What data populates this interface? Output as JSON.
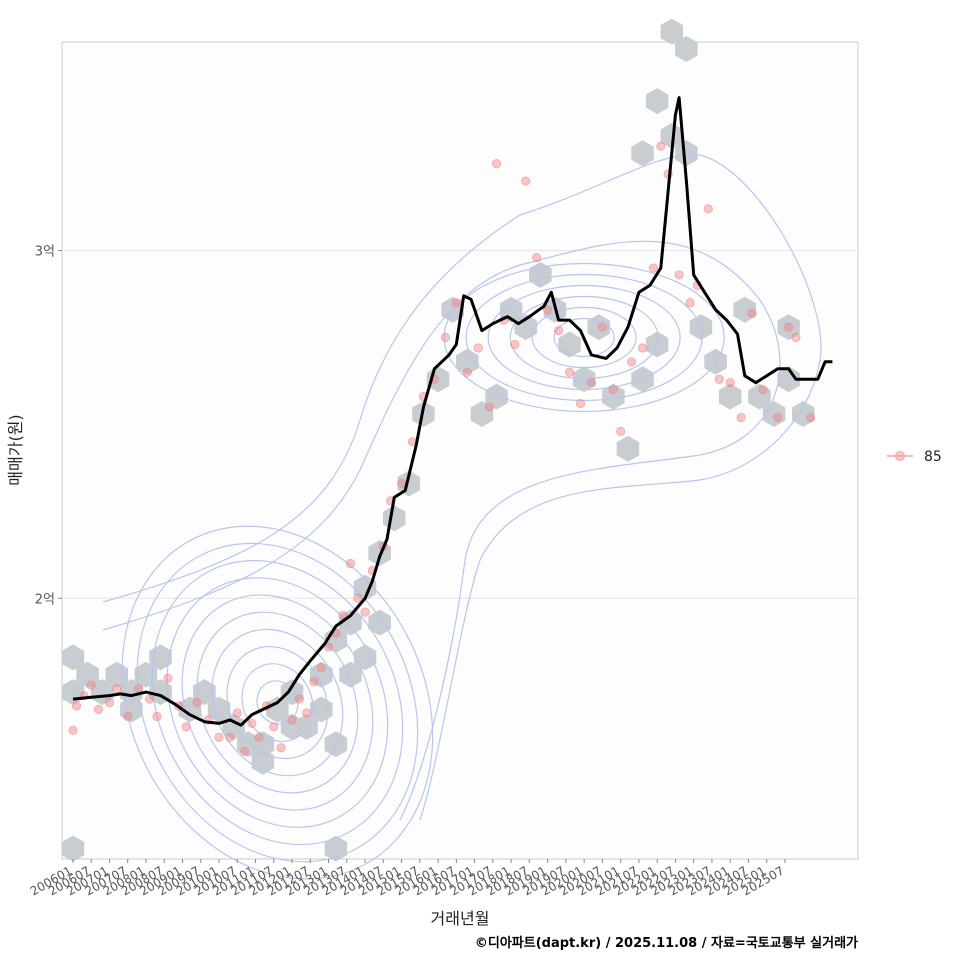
{
  "chart_data": {
    "type": "scatter",
    "description_type": "scatter with hexbin density, 2D density contours and moving-average line",
    "xlabel": "거래년월",
    "ylabel": "매매가(원)",
    "y_unit": "억원",
    "ylim": [
      1.25,
      3.6
    ],
    "y_ticks": [
      {
        "value": 2,
        "label": "2억"
      },
      {
        "value": 3,
        "label": "3억"
      }
    ],
    "x_range": [
      2005.7,
      2027.5
    ],
    "x_ticks": [
      "200601",
      "200607",
      "200701",
      "200707",
      "200801",
      "200807",
      "200901",
      "200907",
      "201001",
      "201007",
      "201101",
      "201107",
      "201201",
      "201207",
      "201301",
      "201307",
      "201401",
      "201407",
      "201501",
      "201507",
      "201601",
      "201607",
      "201701",
      "201707",
      "201801",
      "201807",
      "201901",
      "201907",
      "202001",
      "202007",
      "202101",
      "202107",
      "202201",
      "202207",
      "202301",
      "202307",
      "202401",
      "202407",
      "202501",
      "202507"
    ],
    "legend": [
      {
        "label": "85",
        "color": "#f4a3a3"
      }
    ],
    "colors": {
      "points": "#f08080",
      "hex": "#c5cacf",
      "contour": "#b8c6ef",
      "trend": "#000000",
      "grid": "#e6e6e6",
      "panel_border": "#cccccc"
    },
    "trend_series": {
      "name": "moving average",
      "points": [
        [
          2006.0,
          1.71
        ],
        [
          2006.5,
          1.715
        ],
        [
          2007.0,
          1.72
        ],
        [
          2007.3,
          1.725
        ],
        [
          2007.6,
          1.72
        ],
        [
          2008.0,
          1.73
        ],
        [
          2008.4,
          1.72
        ],
        [
          2008.8,
          1.695
        ],
        [
          2009.2,
          1.665
        ],
        [
          2009.6,
          1.645
        ],
        [
          2010.0,
          1.64
        ],
        [
          2010.3,
          1.65
        ],
        [
          2010.6,
          1.635
        ],
        [
          2010.9,
          1.665
        ],
        [
          2011.2,
          1.68
        ],
        [
          2011.6,
          1.7
        ],
        [
          2011.9,
          1.73
        ],
        [
          2012.2,
          1.78
        ],
        [
          2012.5,
          1.82
        ],
        [
          2012.9,
          1.87
        ],
        [
          2013.2,
          1.92
        ],
        [
          2013.6,
          1.95
        ],
        [
          2014.0,
          2.0
        ],
        [
          2014.2,
          2.05
        ],
        [
          2014.4,
          2.12
        ],
        [
          2014.6,
          2.17
        ],
        [
          2014.8,
          2.29
        ],
        [
          2015.1,
          2.31
        ],
        [
          2015.4,
          2.44
        ],
        [
          2015.6,
          2.55
        ],
        [
          2015.9,
          2.66
        ],
        [
          2016.3,
          2.7
        ],
        [
          2016.5,
          2.73
        ],
        [
          2016.7,
          2.87
        ],
        [
          2016.9,
          2.86
        ],
        [
          2017.2,
          2.77
        ],
        [
          2017.5,
          2.79
        ],
        [
          2017.9,
          2.81
        ],
        [
          2018.2,
          2.79
        ],
        [
          2018.5,
          2.81
        ],
        [
          2018.9,
          2.84
        ],
        [
          2019.1,
          2.88
        ],
        [
          2019.3,
          2.8
        ],
        [
          2019.6,
          2.8
        ],
        [
          2019.9,
          2.77
        ],
        [
          2020.2,
          2.7
        ],
        [
          2020.6,
          2.69
        ],
        [
          2020.9,
          2.72
        ],
        [
          2021.2,
          2.78
        ],
        [
          2021.5,
          2.88
        ],
        [
          2021.8,
          2.9
        ],
        [
          2022.1,
          2.95
        ],
        [
          2022.3,
          3.17
        ],
        [
          2022.5,
          3.39
        ],
        [
          2022.6,
          3.44
        ],
        [
          2022.8,
          3.2
        ],
        [
          2023.0,
          2.93
        ],
        [
          2023.3,
          2.88
        ],
        [
          2023.6,
          2.83
        ],
        [
          2023.9,
          2.8
        ],
        [
          2024.2,
          2.76
        ],
        [
          2024.4,
          2.64
        ],
        [
          2024.7,
          2.62
        ],
        [
          2025.0,
          2.64
        ],
        [
          2025.3,
          2.66
        ],
        [
          2025.6,
          2.66
        ],
        [
          2025.8,
          2.63
        ],
        [
          2026.1,
          2.63
        ],
        [
          2026.4,
          2.63
        ],
        [
          2026.6,
          2.68
        ],
        [
          2026.8,
          2.68
        ]
      ]
    },
    "hexbins": [
      [
        2006.0,
        1.83
      ],
      [
        2006.0,
        1.73
      ],
      [
        2006.4,
        1.78
      ],
      [
        2006.8,
        1.73
      ],
      [
        2007.2,
        1.78
      ],
      [
        2007.6,
        1.73
      ],
      [
        2007.6,
        1.68
      ],
      [
        2008.0,
        1.78
      ],
      [
        2008.4,
        1.83
      ],
      [
        2008.4,
        1.73
      ],
      [
        2006.0,
        1.28
      ],
      [
        2009.2,
        1.68
      ],
      [
        2009.6,
        1.73
      ],
      [
        2010.0,
        1.68
      ],
      [
        2010.4,
        1.63
      ],
      [
        2010.8,
        1.58
      ],
      [
        2011.2,
        1.58
      ],
      [
        2011.2,
        1.53
      ],
      [
        2011.6,
        1.68
      ],
      [
        2012.0,
        1.63
      ],
      [
        2012.0,
        1.73
      ],
      [
        2012.4,
        1.63
      ],
      [
        2012.8,
        1.68
      ],
      [
        2012.8,
        1.78
      ],
      [
        2013.2,
        1.58
      ],
      [
        2013.2,
        1.88
      ],
      [
        2013.6,
        1.78
      ],
      [
        2013.6,
        1.93
      ],
      [
        2014.0,
        1.83
      ],
      [
        2014.0,
        2.03
      ],
      [
        2014.4,
        1.93
      ],
      [
        2014.4,
        2.13
      ],
      [
        2014.8,
        2.23
      ],
      [
        2015.2,
        2.33
      ],
      [
        2015.6,
        2.53
      ],
      [
        2016.0,
        2.63
      ],
      [
        2016.4,
        2.83
      ],
      [
        2016.8,
        2.68
      ],
      [
        2017.2,
        2.53
      ],
      [
        2017.6,
        2.58
      ],
      [
        2018.0,
        2.83
      ],
      [
        2018.4,
        2.78
      ],
      [
        2018.8,
        2.93
      ],
      [
        2019.2,
        2.83
      ],
      [
        2019.6,
        2.73
      ],
      [
        2020.0,
        2.63
      ],
      [
        2020.4,
        2.78
      ],
      [
        2020.8,
        2.58
      ],
      [
        2021.2,
        2.43
      ],
      [
        2021.6,
        2.63
      ],
      [
        2022.0,
        2.73
      ],
      [
        2022.4,
        3.33
      ],
      [
        2022.8,
        3.28
      ],
      [
        2021.6,
        3.28
      ],
      [
        2022.0,
        3.43
      ],
      [
        2022.4,
        3.63
      ],
      [
        2022.8,
        3.58
      ],
      [
        2023.2,
        2.78
      ],
      [
        2023.6,
        2.68
      ],
      [
        2024.0,
        2.58
      ],
      [
        2024.4,
        2.83
      ],
      [
        2024.8,
        2.58
      ],
      [
        2025.2,
        2.53
      ],
      [
        2025.6,
        2.78
      ],
      [
        2025.6,
        2.63
      ],
      [
        2026.0,
        2.53
      ],
      [
        2013.2,
        1.28
      ]
    ],
    "scatter_points": [
      [
        2006.0,
        1.62
      ],
      [
        2006.1,
        1.69
      ],
      [
        2006.3,
        1.72
      ],
      [
        2006.5,
        1.75
      ],
      [
        2006.7,
        1.68
      ],
      [
        2007.0,
        1.7
      ],
      [
        2007.2,
        1.74
      ],
      [
        2007.5,
        1.66
      ],
      [
        2007.8,
        1.74
      ],
      [
        2008.1,
        1.71
      ],
      [
        2008.3,
        1.66
      ],
      [
        2008.6,
        1.77
      ],
      [
        2008.9,
        1.69
      ],
      [
        2009.1,
        1.63
      ],
      [
        2009.4,
        1.7
      ],
      [
        2009.7,
        1.65
      ],
      [
        2010.0,
        1.6
      ],
      [
        2010.3,
        1.6
      ],
      [
        2010.5,
        1.67
      ],
      [
        2010.7,
        1.56
      ],
      [
        2010.9,
        1.64
      ],
      [
        2011.1,
        1.6
      ],
      [
        2011.3,
        1.69
      ],
      [
        2011.5,
        1.63
      ],
      [
        2011.7,
        1.57
      ],
      [
        2012.0,
        1.65
      ],
      [
        2012.2,
        1.71
      ],
      [
        2012.4,
        1.67
      ],
      [
        2012.6,
        1.76
      ],
      [
        2012.8,
        1.8
      ],
      [
        2013.0,
        1.86
      ],
      [
        2013.2,
        1.9
      ],
      [
        2013.4,
        1.95
      ],
      [
        2013.6,
        2.1
      ],
      [
        2013.8,
        2.0
      ],
      [
        2014.0,
        1.96
      ],
      [
        2014.2,
        2.08
      ],
      [
        2014.5,
        2.15
      ],
      [
        2014.7,
        2.28
      ],
      [
        2015.0,
        2.33
      ],
      [
        2015.3,
        2.45
      ],
      [
        2015.6,
        2.58
      ],
      [
        2015.9,
        2.63
      ],
      [
        2016.2,
        2.75
      ],
      [
        2016.5,
        2.85
      ],
      [
        2016.8,
        2.65
      ],
      [
        2017.1,
        2.72
      ],
      [
        2017.4,
        2.55
      ],
      [
        2017.6,
        3.25
      ],
      [
        2017.8,
        2.8
      ],
      [
        2018.1,
        2.73
      ],
      [
        2018.4,
        3.2
      ],
      [
        2018.7,
        2.98
      ],
      [
        2019.0,
        2.83
      ],
      [
        2019.3,
        2.77
      ],
      [
        2019.6,
        2.65
      ],
      [
        2019.9,
        2.56
      ],
      [
        2020.2,
        2.62
      ],
      [
        2020.5,
        2.78
      ],
      [
        2020.8,
        2.6
      ],
      [
        2021.0,
        2.48
      ],
      [
        2021.3,
        2.68
      ],
      [
        2021.6,
        2.72
      ],
      [
        2021.9,
        2.95
      ],
      [
        2022.1,
        3.3
      ],
      [
        2022.3,
        3.22
      ],
      [
        2022.6,
        2.93
      ],
      [
        2022.9,
        2.85
      ],
      [
        2023.1,
        2.9
      ],
      [
        2023.4,
        3.12
      ],
      [
        2023.7,
        2.63
      ],
      [
        2024.0,
        2.62
      ],
      [
        2024.3,
        2.52
      ],
      [
        2024.6,
        2.82
      ],
      [
        2024.9,
        2.6
      ],
      [
        2025.3,
        2.52
      ],
      [
        2025.6,
        2.78
      ],
      [
        2025.8,
        2.75
      ],
      [
        2026.2,
        2.52
      ]
    ],
    "caption": "©디아파트(dapt.kr) / 2025.11.08 / 자료=국토교통부 실거래가"
  }
}
